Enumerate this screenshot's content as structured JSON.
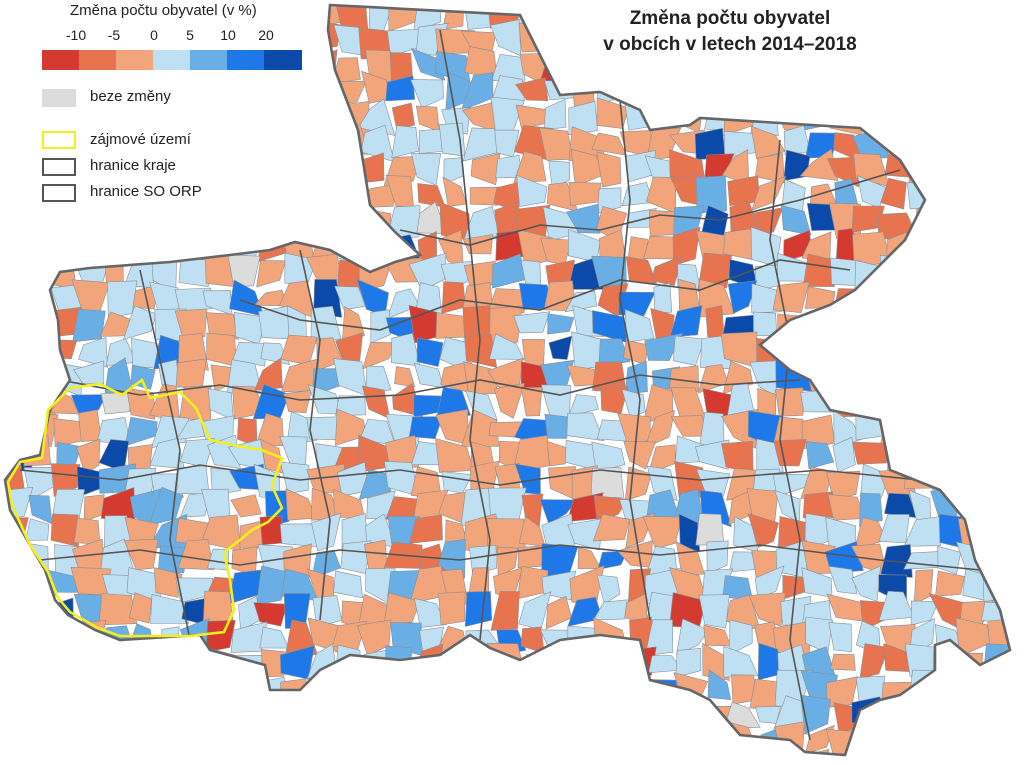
{
  "title_line1": "Změna počtu obyvatel",
  "title_line2": "v obcích v letech 2014–2018",
  "legend": {
    "scale_title": "Změna počtu obyvatel (v %)",
    "ticks": [
      "-10",
      "-5",
      "0",
      "5",
      "10",
      "20"
    ],
    "classes": [
      {
        "color": "#d43a2f"
      },
      {
        "color": "#e8744f"
      },
      {
        "color": "#f2a47b"
      },
      {
        "color": "#bfe0f2"
      },
      {
        "color": "#6aaee6"
      },
      {
        "color": "#1f78e8"
      },
      {
        "color": "#0b4aa8"
      }
    ],
    "no_change_label": "beze změny",
    "no_change_color": "#dcdcdc",
    "area_label": "zájmové území",
    "area_color": "#f3ef1c",
    "region_border_label": "hranice kraje",
    "orp_border_label": "hranice SO ORP",
    "border_color": "#555555"
  }
}
